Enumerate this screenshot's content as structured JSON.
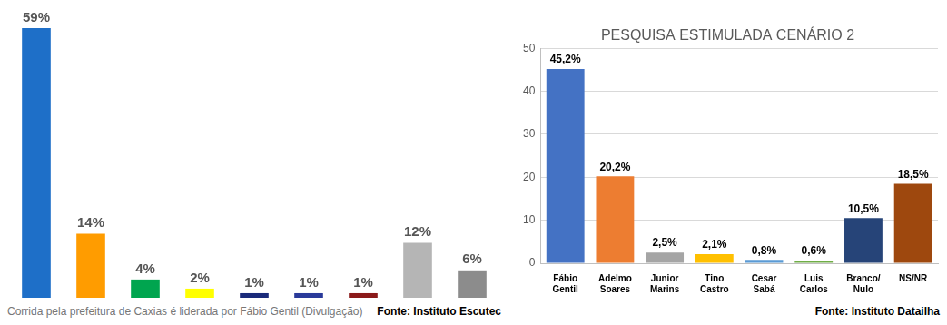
{
  "chart_data": [
    {
      "type": "bar",
      "categories": [
        null,
        null,
        null,
        null,
        null,
        null,
        null,
        null,
        null
      ],
      "values": [
        59,
        14,
        4,
        2,
        1,
        1,
        1,
        12,
        6
      ],
      "value_labels": [
        "59%",
        "14%",
        "4%",
        "2%",
        "1%",
        "1%",
        "1%",
        "12%",
        "6%"
      ],
      "colors": [
        "#1e6fc8",
        "#ff9c00",
        "#00a54f",
        "#ffff00",
        "#1a2a7a",
        "#2a3a9a",
        "#8b1a1a",
        "#b5b5b5",
        "#8c8c8c"
      ],
      "data_labels": true,
      "tick_labels": false,
      "grid": false,
      "annotations": [
        "Corrida pela prefeitura de Caxias é liderada por Fábio Gentil (Divulgação)",
        "Fonte: Instituto Escutec"
      ]
    },
    {
      "type": "bar",
      "title": "PESQUISA ESTIMULADA CENÁRIO 2",
      "categories": [
        "Fábio Gentil",
        "Adelmo Soares",
        "Junior Marins",
        "Tino Castro",
        "Cesar Sabá",
        "Luis Carlos",
        "Branco/ Nulo",
        "NS/NR"
      ],
      "values": [
        45.2,
        20.2,
        2.5,
        2.1,
        0.8,
        0.6,
        10.5,
        18.5
      ],
      "value_labels": [
        "45,2%",
        "20,2%",
        "2,5%",
        "2,1%",
        "0,8%",
        "0,6%",
        "10,5%",
        "18,5%"
      ],
      "colors": [
        "#4472c4",
        "#ed7d31",
        "#a5a5a5",
        "#ffc000",
        "#5b9bd5",
        "#70ad47",
        "#264478",
        "#9e480e"
      ],
      "ylim": [
        0,
        50
      ],
      "yticks": [
        0,
        10,
        20,
        30,
        40,
        50
      ],
      "grid": true,
      "data_labels": true,
      "annotations": [
        "Fonte: Instituto Datailha"
      ]
    }
  ]
}
